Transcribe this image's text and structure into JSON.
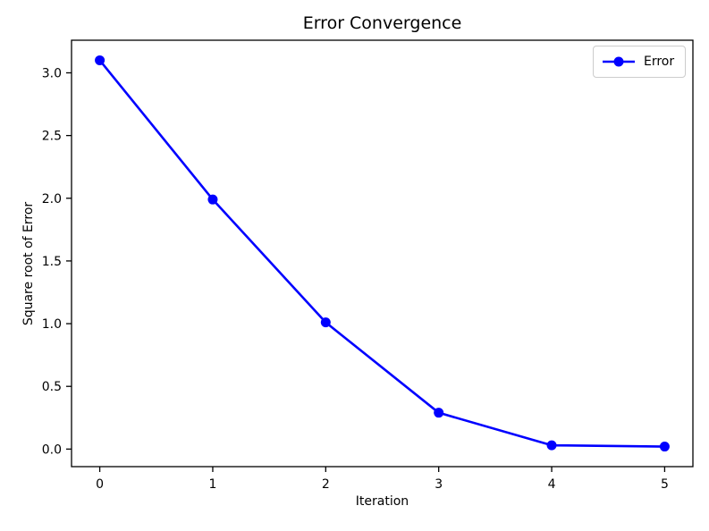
{
  "chart_data": {
    "type": "line",
    "title": "Error Convergence",
    "xlabel": "Iteration",
    "ylabel": "Square root of Error",
    "x": [
      0,
      1,
      2,
      3,
      4,
      5
    ],
    "series": [
      {
        "name": "Error",
        "color": "#0000ff",
        "marker": "circle",
        "marker_size": 5.5,
        "line_width": 2.6,
        "values": [
          3.1,
          1.99,
          1.01,
          0.29,
          0.03,
          0.02
        ]
      }
    ],
    "xlim": [
      -0.25,
      5.25
    ],
    "ylim": [
      -0.14,
      3.26
    ],
    "xtick_values": [
      0,
      1,
      2,
      3,
      4,
      5
    ],
    "xtick_labels": [
      "0",
      "1",
      "2",
      "3",
      "4",
      "5"
    ],
    "ytick_values": [
      0.0,
      0.5,
      1.0,
      1.5,
      2.0,
      2.5,
      3.0
    ],
    "ytick_labels": [
      "0.0",
      "0.5",
      "1.0",
      "1.5",
      "2.0",
      "2.5",
      "3.0"
    ],
    "grid": false,
    "legend": {
      "position": "upper right",
      "entries": [
        "Error"
      ]
    },
    "colors": {
      "axis": "#000000",
      "text": "#000000",
      "background": "#ffffff",
      "legend_border": "#cccccc"
    }
  }
}
